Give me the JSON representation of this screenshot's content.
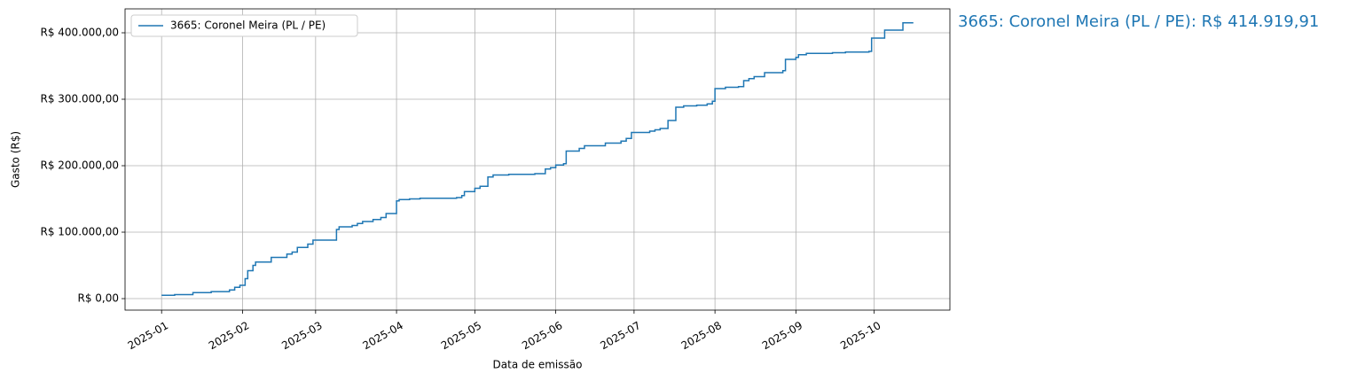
{
  "chart_data": {
    "type": "step",
    "annotation": "3665: Coronel Meira (PL / PE): R$ 414.919,91",
    "xlabel": "Data de emissão",
    "ylabel": "Gasto (R$)",
    "grid": true,
    "legend": "upper left",
    "xlim": [
      "2024-12-18",
      "2025-10-30"
    ],
    "ylim": [
      -17300,
      436000
    ],
    "xticks": [
      {
        "value": "2025-01-01",
        "label": "2025-01"
      },
      {
        "value": "2025-02-01",
        "label": "2025-02"
      },
      {
        "value": "2025-03-01",
        "label": "2025-03"
      },
      {
        "value": "2025-04-01",
        "label": "2025-04"
      },
      {
        "value": "2025-05-01",
        "label": "2025-05"
      },
      {
        "value": "2025-06-01",
        "label": "2025-06"
      },
      {
        "value": "2025-07-01",
        "label": "2025-07"
      },
      {
        "value": "2025-08-01",
        "label": "2025-08"
      },
      {
        "value": "2025-09-01",
        "label": "2025-09"
      },
      {
        "value": "2025-10-01",
        "label": "2025-10"
      }
    ],
    "yticks": [
      {
        "value": 0,
        "label": "R$ 0,00"
      },
      {
        "value": 100000,
        "label": "R$ 100.000,00"
      },
      {
        "value": 200000,
        "label": "R$ 200.000,00"
      },
      {
        "value": 300000,
        "label": "R$ 300.000,00"
      },
      {
        "value": 400000,
        "label": "R$ 400.000,00"
      }
    ],
    "x": [
      "2025-01-01",
      "2025-01-06",
      "2025-01-13",
      "2025-01-20",
      "2025-01-27",
      "2025-01-29",
      "2025-01-31",
      "2025-02-02",
      "2025-02-03",
      "2025-02-05",
      "2025-02-06",
      "2025-02-12",
      "2025-02-18",
      "2025-02-20",
      "2025-02-22",
      "2025-02-26",
      "2025-02-28",
      "2025-03-09",
      "2025-03-10",
      "2025-03-15",
      "2025-03-17",
      "2025-03-19",
      "2025-03-23",
      "2025-03-26",
      "2025-03-28",
      "2025-04-01",
      "2025-04-02",
      "2025-04-06",
      "2025-04-10",
      "2025-04-24",
      "2025-04-26",
      "2025-04-27",
      "2025-05-01",
      "2025-05-03",
      "2025-05-06",
      "2025-05-08",
      "2025-05-14",
      "2025-05-24",
      "2025-05-28",
      "2025-05-30",
      "2025-06-01",
      "2025-06-04",
      "2025-06-05",
      "2025-06-10",
      "2025-06-12",
      "2025-06-20",
      "2025-06-26",
      "2025-06-28",
      "2025-06-30",
      "2025-07-07",
      "2025-07-09",
      "2025-07-11",
      "2025-07-14",
      "2025-07-17",
      "2025-07-20",
      "2025-07-25",
      "2025-07-29",
      "2025-07-31",
      "2025-08-01",
      "2025-08-05",
      "2025-08-10",
      "2025-08-12",
      "2025-08-14",
      "2025-08-16",
      "2025-08-20",
      "2025-08-27",
      "2025-08-28",
      "2025-09-01",
      "2025-09-02",
      "2025-09-05",
      "2025-09-15",
      "2025-09-20",
      "2025-09-29",
      "2025-09-30",
      "2025-10-05",
      "2025-10-12",
      "2025-10-16"
    ],
    "series": [
      {
        "name": "3665: Coronel Meira (PL / PE)",
        "color": "#1f77b4",
        "values": [
          5000,
          6000,
          9000,
          10500,
          13000,
          17000,
          20000,
          30000,
          42000,
          50000,
          55000,
          62000,
          67000,
          70000,
          77000,
          82000,
          88000,
          104000,
          108000,
          110000,
          113000,
          116000,
          119000,
          122000,
          128000,
          147000,
          149000,
          150000,
          151000,
          152000,
          155000,
          161000,
          166000,
          169000,
          183000,
          186000,
          187000,
          188000,
          195000,
          197000,
          201000,
          203000,
          222000,
          226000,
          230000,
          234000,
          237000,
          241000,
          250000,
          252000,
          254000,
          256000,
          268000,
          288000,
          290000,
          291000,
          293000,
          297000,
          316000,
          318000,
          319000,
          328000,
          331000,
          334000,
          340000,
          343000,
          360000,
          363000,
          367000,
          369000,
          370000,
          371000,
          372000,
          392000,
          404000,
          414919.91,
          414919.91
        ]
      }
    ]
  }
}
